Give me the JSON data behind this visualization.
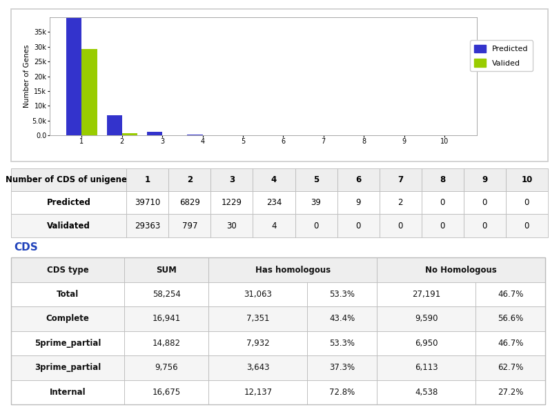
{
  "bar_categories": [
    1,
    2,
    3,
    4,
    5,
    6,
    7,
    8,
    9,
    10
  ],
  "predicted": [
    39710,
    6829,
    1229,
    234,
    39,
    9,
    2,
    0,
    0,
    0
  ],
  "validated": [
    29363,
    797,
    30,
    4,
    0,
    0,
    0,
    0,
    0,
    0
  ],
  "predicted_color": "#3333cc",
  "validated_color": "#99cc00",
  "ylabel": "Number of Genes",
  "yticks": [
    0,
    5000,
    10000,
    15000,
    20000,
    25000,
    30000,
    35000
  ],
  "ytick_labels": [
    "0.0",
    "5.0k",
    "10k",
    "15k",
    "20k",
    "25k",
    "30k",
    "35k"
  ],
  "table1_headers": [
    "Number of CDS of unigenes",
    "1",
    "2",
    "3",
    "4",
    "5",
    "6",
    "7",
    "8",
    "9",
    "10"
  ],
  "table1_row1": [
    "Predicted",
    "39710",
    "6829",
    "1229",
    "234",
    "39",
    "9",
    "2",
    "0",
    "0",
    "0"
  ],
  "table1_row2": [
    "Validated",
    "29363",
    "797",
    "30",
    "4",
    "0",
    "0",
    "0",
    "0",
    "0",
    "0"
  ],
  "cds_label": "CDS",
  "table2_rows": [
    [
      "Total",
      "58,254",
      "31,063",
      "53.3%",
      "27,191",
      "46.7%"
    ],
    [
      "Complete",
      "16,941",
      "7,351",
      "43.4%",
      "9,590",
      "56.6%"
    ],
    [
      "5prime_partial",
      "14,882",
      "7,932",
      "53.3%",
      "6,950",
      "46.7%"
    ],
    [
      "3prime_partial",
      "9,756",
      "3,643",
      "37.3%",
      "6,113",
      "62.7%"
    ],
    [
      "Internal",
      "16,675",
      "12,137",
      "72.8%",
      "4,538",
      "27.2%"
    ]
  ],
  "bg_color": "#ffffff",
  "border_color": "#bbbbbb",
  "header_bg": "#eeeeee",
  "row_bg_even": "#ffffff",
  "row_bg_odd": "#f5f5f5",
  "chart_box_color": "#cccccc",
  "legend_label_predicted": "Predicted",
  "legend_label_valided": "Valided"
}
